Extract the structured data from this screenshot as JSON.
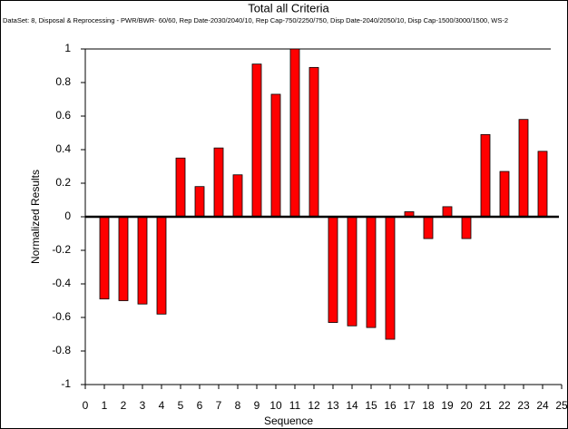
{
  "chart_data": {
    "type": "bar",
    "title": "Total all Criteria",
    "subtitle": "DataSet: 8, Disposal & Reprocessing - PWR/BWR- 60/60, Rep Date-2030/2040/10, Rep Cap-750/2250/750,  Disp Date-2040/2050/10, Disp Cap-1500/3000/1500, WS-2",
    "xlabel": "Sequence",
    "ylabel": "Normalized Results",
    "x": [
      1,
      2,
      3,
      4,
      5,
      6,
      7,
      8,
      9,
      10,
      11,
      12,
      13,
      14,
      15,
      16,
      17,
      18,
      19,
      20,
      21,
      22,
      23,
      24
    ],
    "values": [
      -0.49,
      -0.5,
      -0.52,
      -0.58,
      0.35,
      0.18,
      0.41,
      0.25,
      0.91,
      0.73,
      1.0,
      0.89,
      -0.63,
      -0.65,
      -0.66,
      -0.73,
      0.03,
      -0.13,
      0.06,
      -0.13,
      0.49,
      0.27,
      0.58,
      0.39
    ],
    "color": "#ff0000",
    "xlim": [
      0,
      25
    ],
    "xticks": [
      0,
      1,
      2,
      3,
      4,
      5,
      6,
      7,
      8,
      9,
      10,
      11,
      12,
      13,
      14,
      15,
      16,
      17,
      18,
      19,
      20,
      21,
      22,
      23,
      24,
      25
    ],
    "ylim": [
      -1,
      1
    ],
    "yticks": [
      -1,
      -0.8,
      -0.6,
      -0.4,
      -0.2,
      0,
      0.2,
      0.4,
      0.6,
      0.8,
      1
    ]
  }
}
